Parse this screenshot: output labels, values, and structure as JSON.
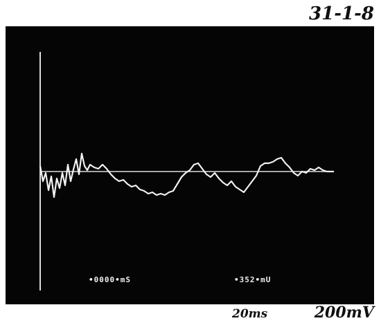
{
  "header": {
    "label": "31-1-8"
  },
  "screen": {
    "readout_left": "•0000•mS",
    "readout_right": "•352•mU"
  },
  "footer": {
    "time_scale": "20ms",
    "voltage_scale": "200mV"
  }
}
